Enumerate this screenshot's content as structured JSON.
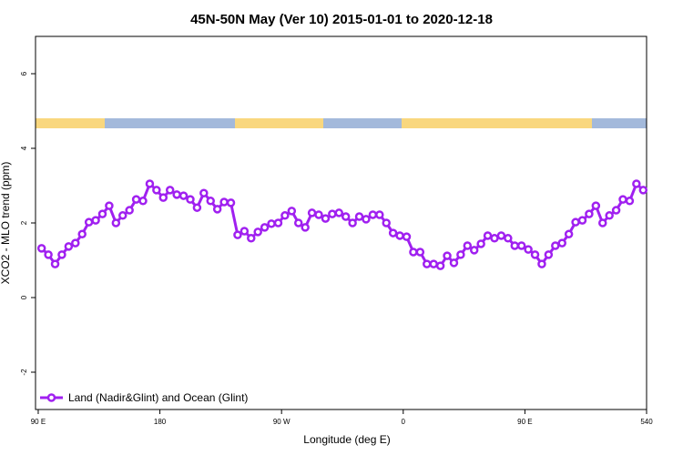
{
  "chart_data": {
    "type": "line",
    "title": "45N-50N May (Ver 10)   2015-01-01 to 2020-12-18",
    "x_label": "Longitude (deg E)",
    "y_label": "XCO2 - MLO trend (ppm)",
    "xlim": [
      88,
      540
    ],
    "ylim": [
      -3,
      7
    ],
    "xticks": [
      {
        "value": 90,
        "label": "90 E"
      },
      180,
      {
        "value": 270,
        "label": "90 W"
      },
      {
        "value": 360,
        "label": "0"
      },
      {
        "value": 450,
        "label": "90 E"
      },
      540
    ],
    "yticks": [
      -2,
      0,
      2,
      4,
      6
    ],
    "legend": "bottom-left",
    "series": [
      {
        "name": "Land (Nadir&Glint) and Ocean (Glint)",
        "color": "#a020f0",
        "x": [
          92.5,
          97.5,
          102.5,
          107.5,
          112.5,
          117.5,
          122.5,
          127.5,
          132.5,
          137.5,
          142.5,
          147.5,
          152.5,
          157.5,
          162.5,
          167.5,
          172.5,
          177.5,
          182.5,
          187.5,
          192.5,
          197.5,
          202.5,
          207.5,
          212.5,
          217.5,
          222.5,
          227.5,
          232.5,
          237.5,
          242.5,
          247.5,
          252.5,
          257.5,
          262.5,
          267.5,
          272.5,
          277.5,
          282.5,
          287.5,
          292.5,
          297.5,
          302.5,
          307.5,
          312.5,
          317.5,
          322.5,
          327.5,
          332.5,
          337.5,
          342.5,
          347.5,
          352.5,
          357.5,
          362.5,
          367.5,
          372.5,
          377.5,
          382.5,
          387.5,
          392.5,
          397.5,
          402.5,
          407.5,
          412.5,
          417.5,
          422.5,
          427.5,
          432.5,
          437.5,
          442.5,
          447.5,
          452.5,
          457.5,
          462.5,
          467.5,
          472.5,
          477.5,
          482.5,
          487.5,
          492.5,
          497.5,
          502.5,
          507.5,
          512.5,
          517.5,
          522.5,
          527.5,
          532.5,
          537.5
        ],
        "values": [
          1.32,
          1.15,
          0.9,
          1.15,
          1.37,
          1.46,
          1.7,
          2.02,
          2.07,
          2.24,
          2.46,
          2.0,
          2.2,
          2.34,
          2.63,
          2.59,
          3.05,
          2.88,
          2.68,
          2.88,
          2.76,
          2.73,
          2.63,
          2.41,
          2.8,
          2.59,
          2.37,
          2.56,
          2.54,
          1.68,
          1.78,
          1.59,
          1.76,
          1.88,
          1.98,
          2.0,
          2.2,
          2.32,
          2.0,
          1.88,
          2.27,
          2.22,
          2.12,
          2.24,
          2.27,
          2.17,
          2.0,
          2.17,
          2.1,
          2.22,
          2.22,
          2.0,
          1.73,
          1.66,
          1.63,
          1.22,
          1.22,
          0.9,
          0.9,
          0.85,
          1.12,
          0.93,
          1.15,
          1.39,
          1.27,
          1.44,
          1.66,
          1.59,
          1.66,
          1.59,
          1.39,
          1.39,
          1.29,
          1.15,
          0.9,
          1.15,
          1.39,
          1.46,
          1.7,
          2.02,
          2.07,
          2.24,
          2.46,
          2.0,
          2.2,
          2.34,
          2.63,
          2.59,
          3.05,
          2.88
        ]
      }
    ]
  }
}
